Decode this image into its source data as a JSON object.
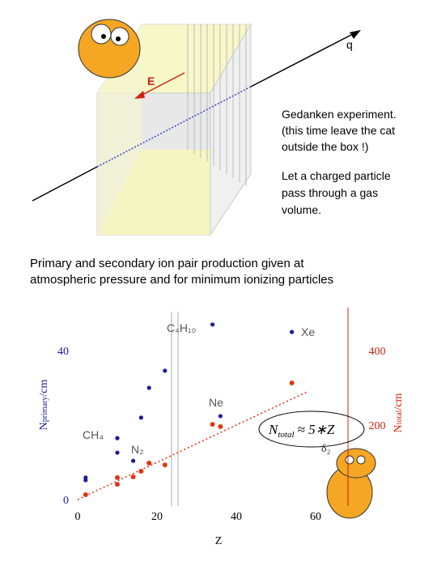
{
  "diagram": {
    "charge_label": "q",
    "field_label": "E"
  },
  "notes": {
    "first": [
      "Gedanken experiment.",
      "(this time leave the cat",
      "outside the box !)"
    ],
    "second": [
      "Let a charged particle",
      "pass through a gas",
      "volume."
    ]
  },
  "caption": [
    "Primary and secondary ion pair production given at",
    "atmospheric pressure and for minimum ionizing particles"
  ],
  "chart_data": {
    "type": "scatter",
    "x_label": "Z",
    "y_label": {
      "main": "N",
      "sub": "primary",
      "rest": "/cm"
    },
    "y2_label": {
      "main": "N",
      "sub": "total",
      "rest": "/cm"
    },
    "x": [
      2,
      2,
      10,
      10,
      14,
      16,
      18,
      22,
      34,
      36,
      54
    ],
    "series": [
      {
        "color": "#1a1a9c",
        "values": [
          5.9,
          5.2,
          16.5,
          12.6,
          10.4,
          22,
          30,
          34.6,
          47,
          22.4,
          45
        ]
      },
      {
        "color": "#e03010",
        "axis": "y2",
        "values": [
          13,
          null,
          59,
          41,
          61,
          76,
          98,
          93,
          202,
          196,
          313
        ]
      }
    ],
    "trend": {
      "color": "#e03010",
      "x": [
        0,
        58
      ],
      "values": [
        0,
        290
      ]
    },
    "xlim": [
      0,
      68
    ],
    "ylim": [
      0,
      50
    ],
    "y2lim": [
      0,
      500
    ],
    "xticks": [
      0,
      20,
      40,
      60
    ],
    "yticks": [
      0,
      40
    ],
    "y2ticks": [
      200,
      400
    ],
    "annotations": {
      "butane": "C₄H₁₀",
      "xenon": "Xe",
      "neon": "Ne",
      "methane": "CH₄",
      "nitrogen": "N₂",
      "delta": "δ₂"
    },
    "formula": {
      "main": "N",
      "sub": "total",
      "rest": "≈ 5∗Z"
    }
  }
}
